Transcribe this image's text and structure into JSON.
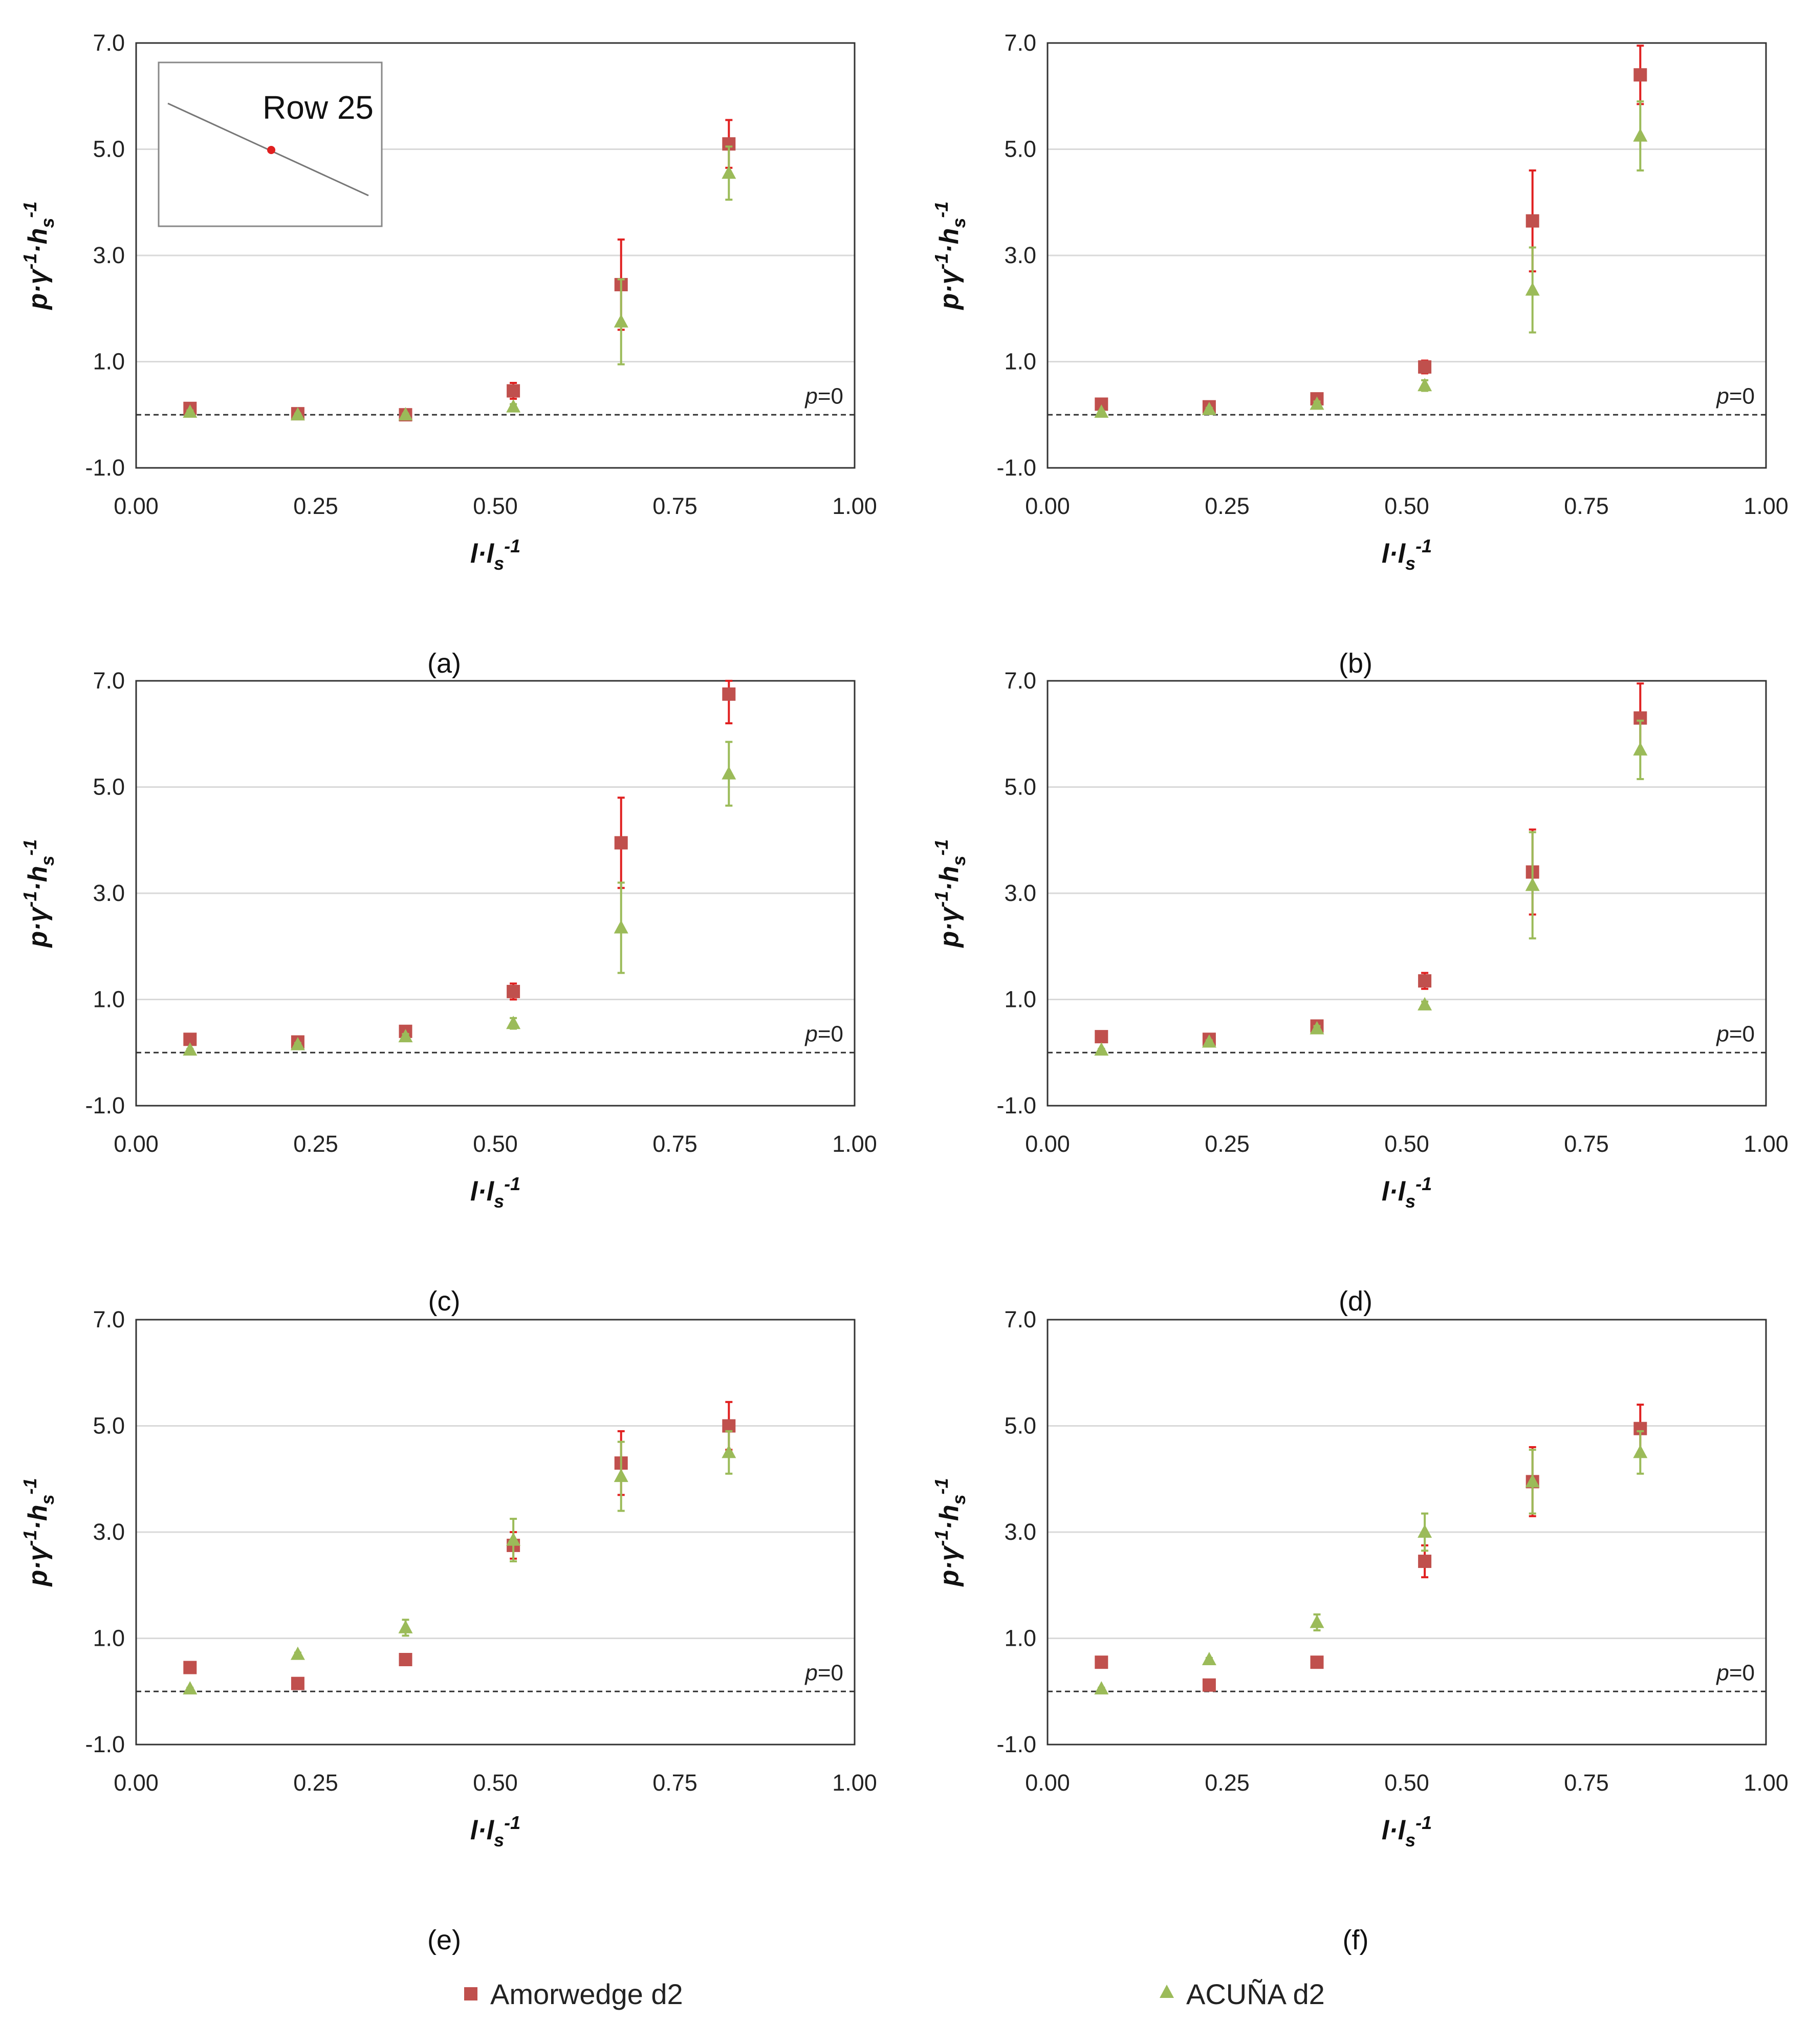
{
  "legend": {
    "series": [
      {
        "name": "Amorwedge d2",
        "color": "#c0504d",
        "errColor": "#e02020",
        "marker": "square"
      },
      {
        "name": "ACUÑA d2",
        "color": "#9bbb59",
        "errColor": "#9bbb59",
        "marker": "triangle"
      }
    ]
  },
  "chart_data": [
    {
      "type": "scatter",
      "panel": "(a)",
      "xlabel": "l·ls-1",
      "ylabel": "p·γ-1·hs-1",
      "xlim": [
        0,
        1
      ],
      "ylim": [
        -1,
        7
      ],
      "xticks": [
        "0.00",
        "0.25",
        "0.50",
        "0.75",
        "1.00"
      ],
      "yticks": [
        "-1.0",
        "1.0",
        "3.0",
        "5.0",
        "7.0"
      ],
      "reference_line": {
        "y": 0,
        "label": "p=0"
      },
      "inset": {
        "label": "Row 25"
      },
      "x": [
        0.075,
        0.225,
        0.375,
        0.525,
        0.675,
        0.825
      ],
      "series": [
        {
          "name": "Amorwedge d2",
          "values": [
            0.12,
            0.02,
            0.0,
            0.45,
            2.45,
            5.1
          ],
          "err": [
            0.05,
            0.03,
            0.03,
            0.15,
            0.85,
            0.45
          ]
        },
        {
          "name": "ACUÑA d2",
          "values": [
            0.05,
            0.0,
            0.0,
            0.15,
            1.75,
            4.55
          ],
          "err": [
            0.03,
            0.02,
            0.02,
            0.05,
            0.8,
            0.5
          ]
        }
      ]
    },
    {
      "type": "scatter",
      "panel": "(b)",
      "xlabel": "l·ls-1",
      "ylabel": "p·γ-1·hs-1",
      "xlim": [
        0,
        1
      ],
      "ylim": [
        -1,
        7
      ],
      "xticks": [
        "0.00",
        "0.25",
        "0.50",
        "0.75",
        "1.00"
      ],
      "yticks": [
        "-1.0",
        "1.0",
        "3.0",
        "5.0",
        "7.0"
      ],
      "reference_line": {
        "y": 0,
        "label": "p=0"
      },
      "x": [
        0.075,
        0.225,
        0.375,
        0.525,
        0.675,
        0.825
      ],
      "series": [
        {
          "name": "Amorwedge d2",
          "values": [
            0.2,
            0.15,
            0.3,
            0.9,
            3.65,
            6.4
          ],
          "err": [
            0.03,
            0.03,
            0.05,
            0.12,
            0.95,
            0.55
          ]
        },
        {
          "name": "ACUÑA d2",
          "values": [
            0.05,
            0.1,
            0.2,
            0.55,
            2.35,
            5.25
          ],
          "err": [
            0.02,
            0.03,
            0.05,
            0.1,
            0.8,
            0.65
          ]
        }
      ]
    },
    {
      "type": "scatter",
      "panel": "(c)",
      "xlabel": "l·ls-1",
      "ylabel": "p·γ-1·hs-1",
      "xlim": [
        0,
        1
      ],
      "ylim": [
        -1,
        7
      ],
      "xticks": [
        "0.00",
        "0.25",
        "0.50",
        "0.75",
        "1.00"
      ],
      "yticks": [
        "-1.0",
        "1.0",
        "3.0",
        "5.0",
        "7.0"
      ],
      "reference_line": {
        "y": 0,
        "label": "p=0"
      },
      "x": [
        0.075,
        0.225,
        0.375,
        0.525,
        0.675,
        0.825
      ],
      "series": [
        {
          "name": "Amorwedge d2",
          "values": [
            0.25,
            0.2,
            0.4,
            1.15,
            3.95,
            6.75
          ],
          "err": [
            0.04,
            0.04,
            0.05,
            0.15,
            0.85,
            0.55
          ]
        },
        {
          "name": "ACUÑA d2",
          "values": [
            0.05,
            0.15,
            0.3,
            0.55,
            2.35,
            5.25
          ],
          "err": [
            0.02,
            0.03,
            0.05,
            0.1,
            0.85,
            0.6
          ]
        }
      ]
    },
    {
      "type": "scatter",
      "panel": "(d)",
      "xlabel": "l·ls-1",
      "ylabel": "p·γ-1·hs-1",
      "xlim": [
        0,
        1
      ],
      "ylim": [
        -1,
        7
      ],
      "xticks": [
        "0.00",
        "0.25",
        "0.50",
        "0.75",
        "1.00"
      ],
      "yticks": [
        "-1.0",
        "1.0",
        "3.0",
        "5.0",
        "7.0"
      ],
      "reference_line": {
        "y": 0,
        "label": "p=0"
      },
      "x": [
        0.075,
        0.225,
        0.375,
        0.525,
        0.675,
        0.825
      ],
      "series": [
        {
          "name": "Amorwedge d2",
          "values": [
            0.3,
            0.25,
            0.5,
            1.35,
            3.4,
            6.3
          ],
          "err": [
            0.03,
            0.04,
            0.05,
            0.15,
            0.8,
            0.65
          ]
        },
        {
          "name": "ACUÑA d2",
          "values": [
            0.05,
            0.2,
            0.45,
            0.9,
            3.15,
            5.7
          ],
          "err": [
            0.02,
            0.03,
            0.05,
            0.06,
            1.0,
            0.55
          ]
        }
      ]
    },
    {
      "type": "scatter",
      "panel": "(e)",
      "xlabel": "l·ls-1",
      "ylabel": "p·γ-1·hs-1",
      "xlim": [
        0,
        1
      ],
      "ylim": [
        -1,
        7
      ],
      "xticks": [
        "0.00",
        "0.25",
        "0.50",
        "0.75",
        "1.00"
      ],
      "yticks": [
        "-1.0",
        "1.0",
        "3.0",
        "5.0",
        "7.0"
      ],
      "reference_line": {
        "y": 0,
        "label": "p=0"
      },
      "x": [
        0.075,
        0.225,
        0.375,
        0.525,
        0.675,
        0.825
      ],
      "series": [
        {
          "name": "Amorwedge d2",
          "values": [
            0.45,
            0.15,
            0.6,
            2.75,
            4.3,
            5.0
          ],
          "err": [
            0.03,
            0.03,
            0.04,
            0.25,
            0.6,
            0.45
          ]
        },
        {
          "name": "ACUÑA d2",
          "values": [
            0.05,
            0.7,
            1.2,
            2.85,
            4.05,
            4.5
          ],
          "err": [
            0.02,
            0.03,
            0.15,
            0.4,
            0.65,
            0.4
          ]
        }
      ]
    },
    {
      "type": "scatter",
      "panel": "(f)",
      "xlabel": "l·ls-1",
      "ylabel": "p·γ-1·hs-1",
      "xlim": [
        0,
        1
      ],
      "ylim": [
        -1,
        7
      ],
      "xticks": [
        "0.00",
        "0.25",
        "0.50",
        "0.75",
        "1.00"
      ],
      "yticks": [
        "-1.0",
        "1.0",
        "3.0",
        "5.0",
        "7.0"
      ],
      "reference_line": {
        "y": 0,
        "label": "p=0"
      },
      "x": [
        0.075,
        0.225,
        0.375,
        0.525,
        0.675,
        0.825
      ],
      "series": [
        {
          "name": "Amorwedge d2",
          "values": [
            0.55,
            0.12,
            0.55,
            2.45,
            3.95,
            4.95
          ],
          "err": [
            0.03,
            0.03,
            0.04,
            0.3,
            0.65,
            0.45
          ]
        },
        {
          "name": "ACUÑA d2",
          "values": [
            0.05,
            0.6,
            1.3,
            3.0,
            3.95,
            4.5
          ],
          "err": [
            0.02,
            0.03,
            0.15,
            0.35,
            0.6,
            0.4
          ]
        }
      ]
    }
  ]
}
